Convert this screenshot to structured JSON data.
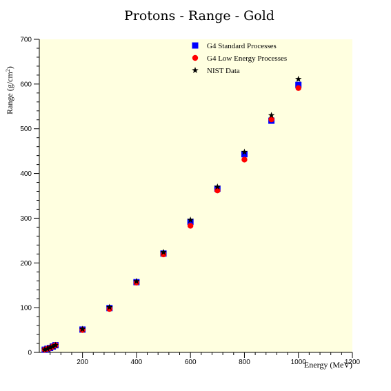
{
  "colors": {
    "plot_background": "#ffffe0",
    "standard": "#0000ff",
    "low_energy": "#ff0000",
    "nist": "#000000"
  },
  "chart_data": {
    "type": "scatter",
    "title": "Protons - Range - Gold",
    "xlabel": "Energy (MeV)",
    "ylabel": "Range (g/cm",
    "ylabel_sup": "2",
    "ylabel_end": ")",
    "xlim": [
      40,
      1200
    ],
    "ylim": [
      0,
      700
    ],
    "xticks": [
      200,
      400,
      600,
      800,
      1000,
      1200
    ],
    "yticks": [
      0,
      100,
      200,
      300,
      400,
      500,
      600,
      700
    ],
    "grid": false,
    "legend_position": "top-right",
    "series": [
      {
        "name": "G4 Standard Processes",
        "marker": "square",
        "color": "#0000ff",
        "x": [
          60,
          70,
          80,
          90,
          100,
          200,
          300,
          400,
          500,
          600,
          700,
          800,
          900,
          1000
        ],
        "y": [
          6,
          8,
          10,
          13,
          16,
          51,
          99,
          157,
          221,
          292,
          366,
          443,
          518,
          598
        ]
      },
      {
        "name": "G4 Low Energy Processes",
        "marker": "circle",
        "color": "#ff0000",
        "x": [
          60,
          70,
          80,
          90,
          100,
          200,
          300,
          400,
          500,
          600,
          700,
          800,
          900,
          1000
        ],
        "y": [
          6,
          8,
          10,
          13,
          16,
          50,
          97,
          156,
          219,
          283,
          362,
          431,
          521,
          591
        ]
      },
      {
        "name": "NIST Data",
        "marker": "star",
        "color": "#000000",
        "x": [
          60,
          70,
          80,
          90,
          100,
          200,
          300,
          400,
          500,
          600,
          700,
          800,
          900,
          1000
        ],
        "y": [
          6,
          8,
          11,
          13,
          16,
          52,
          101,
          159,
          224,
          296,
          370,
          448,
          530,
          611
        ]
      }
    ]
  }
}
